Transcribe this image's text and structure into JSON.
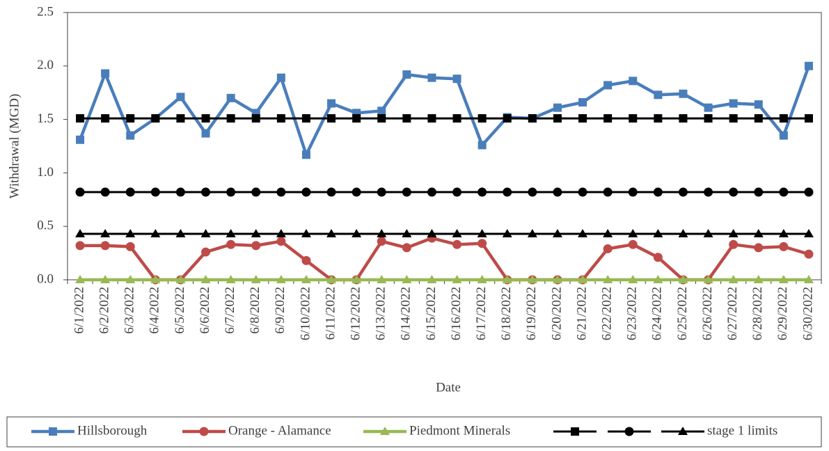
{
  "chart_data": {
    "type": "line",
    "x_label": "Date",
    "y_label": "Withdrawal (MGD)",
    "categories": [
      "6/1/2022",
      "6/2/2022",
      "6/3/2022",
      "6/4/2022",
      "6/5/2022",
      "6/6/2022",
      "6/7/2022",
      "6/8/2022",
      "6/9/2022",
      "6/10/2022",
      "6/11/2022",
      "6/12/2022",
      "6/13/2022",
      "6/14/2022",
      "6/15/2022",
      "6/16/2022",
      "6/17/2022",
      "6/18/2022",
      "6/19/2022",
      "6/20/2022",
      "6/21/2022",
      "6/22/2022",
      "6/23/2022",
      "6/24/2022",
      "6/25/2022",
      "6/26/2022",
      "6/27/2022",
      "6/28/2022",
      "6/29/2022",
      "6/30/2022"
    ],
    "series": [
      {
        "name": "Hillsborough",
        "color": "#4a7ebb",
        "marker": "square",
        "values": [
          1.31,
          1.93,
          1.35,
          1.51,
          1.71,
          1.37,
          1.7,
          1.56,
          1.89,
          1.17,
          1.65,
          1.56,
          1.58,
          1.92,
          1.89,
          1.88,
          1.26,
          1.52,
          1.51,
          1.61,
          1.66,
          1.82,
          1.86,
          1.73,
          1.74,
          1.61,
          1.65,
          1.64,
          1.35,
          2.0
        ]
      },
      {
        "name": "Orange - Alamance",
        "color": "#be4b48",
        "marker": "circle",
        "values": [
          0.32,
          0.32,
          0.31,
          0,
          0,
          0.26,
          0.33,
          0.32,
          0.36,
          0.18,
          0,
          0,
          0.36,
          0.3,
          0.39,
          0.33,
          0.34,
          0,
          0,
          0,
          0,
          0.29,
          0.33,
          0.21,
          0,
          0,
          0.33,
          0.3,
          0.31,
          0.24
        ]
      },
      {
        "name": "Piedmont Minerals",
        "color": "#98b954",
        "marker": "triangle",
        "values": [
          0,
          0,
          0,
          0,
          0,
          0,
          0,
          0,
          0,
          0,
          0,
          0,
          0,
          0,
          0,
          0,
          0,
          0,
          0,
          0,
          0,
          0,
          0,
          0,
          0,
          0,
          0,
          0,
          0,
          0
        ]
      },
      {
        "color": "#000000",
        "marker": "square",
        "values": [
          1.51,
          1.51,
          1.51,
          1.51,
          1.51,
          1.51,
          1.51,
          1.51,
          1.51,
          1.51,
          1.51,
          1.51,
          1.51,
          1.51,
          1.51,
          1.51,
          1.51,
          1.51,
          1.51,
          1.51,
          1.51,
          1.51,
          1.51,
          1.51,
          1.51,
          1.51,
          1.51,
          1.51,
          1.51,
          1.51
        ]
      },
      {
        "color": "#000000",
        "marker": "circle",
        "values": [
          0.82,
          0.82,
          0.82,
          0.82,
          0.82,
          0.82,
          0.82,
          0.82,
          0.82,
          0.82,
          0.82,
          0.82,
          0.82,
          0.82,
          0.82,
          0.82,
          0.82,
          0.82,
          0.82,
          0.82,
          0.82,
          0.82,
          0.82,
          0.82,
          0.82,
          0.82,
          0.82,
          0.82,
          0.82,
          0.82
        ]
      },
      {
        "name": "stage 1 limits",
        "color": "#000000",
        "marker": "triangle",
        "values": [
          0.43,
          0.43,
          0.43,
          0.43,
          0.43,
          0.43,
          0.43,
          0.43,
          0.43,
          0.43,
          0.43,
          0.43,
          0.43,
          0.43,
          0.43,
          0.43,
          0.43,
          0.43,
          0.43,
          0.43,
          0.43,
          0.43,
          0.43,
          0.43,
          0.43,
          0.43,
          0.43,
          0.43,
          0.43,
          0.43
        ]
      }
    ],
    "ylim": [
      0,
      2.5
    ],
    "yticks": [
      {
        "value": 0,
        "label": "0.0"
      },
      0.5,
      {
        "value": 1,
        "label": "1.0"
      },
      1.5,
      {
        "value": 2,
        "label": "2.0"
      },
      2.5
    ],
    "grid": false,
    "legend": "bottom"
  }
}
